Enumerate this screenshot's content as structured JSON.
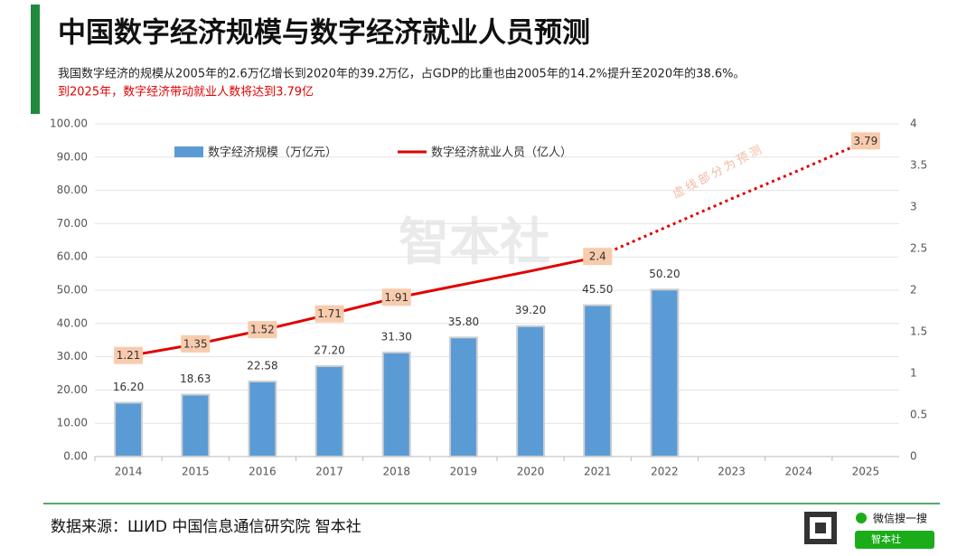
{
  "chart_data": {
    "type": "bar_line",
    "title": "中国数字经济规模与数字经济就业人员预测",
    "subtitle": "我国数字经济的规模从2005年的2.6万亿增长到2020年的39.2万亿，占GDP的比重也由2005年的14.2%提升至2020年的38.6%。",
    "highlight": "到2025年，数字经济带动就业人数将达到3.79亿",
    "annotation": "虚线部分为预测",
    "watermark": "智本社",
    "source": "数据来源：ШИD  中国信息通信研究院   智本社",
    "wechat": "微信搜一搜",
    "wechat_button": "智本社",
    "categories": [
      "2014",
      "2015",
      "2016",
      "2017",
      "2018",
      "2019",
      "2020",
      "2021",
      "2022",
      "2023",
      "2024",
      "2025"
    ],
    "series": [
      {
        "name": "数字经济规模（万亿元）",
        "color": "#5b9bd5",
        "type": "bar",
        "values": [
          16.2,
          18.63,
          22.58,
          27.2,
          31.3,
          35.8,
          39.2,
          45.5,
          50.2,
          null,
          null,
          null
        ],
        "value_labels": [
          "16.20",
          "18.63",
          "22.58",
          "27.20",
          "31.30",
          "35.80",
          "39.20",
          "45.50",
          "50.20",
          null,
          null,
          null
        ]
      },
      {
        "name": "数字经济就业人员（亿人）",
        "color": "#e00000",
        "type": "line",
        "axis": "y2",
        "values": [
          1.21,
          1.35,
          1.52,
          1.71,
          1.91,
          2.07,
          2.23,
          2.4,
          2.75,
          3.1,
          3.44,
          3.79
        ],
        "value_labels": [
          "1.21",
          "1.35",
          "1.52",
          "1.71",
          "1.91",
          null,
          null,
          "2.4",
          null,
          null,
          null,
          "3.79"
        ],
        "forecast_start": 2021
      }
    ],
    "ylim": [
      0,
      100
    ],
    "yticks": [
      {
        "value": 0,
        "label": "0.00"
      },
      {
        "value": 10,
        "label": "10.00"
      },
      {
        "value": 20,
        "label": "20.00"
      },
      {
        "value": 30,
        "label": "30.00"
      },
      {
        "value": 40,
        "label": "40.00"
      },
      {
        "value": 50,
        "label": "50.00"
      },
      {
        "value": 60,
        "label": "60.00"
      },
      {
        "value": 70,
        "label": "70.00"
      },
      {
        "value": 80,
        "label": "80.00"
      },
      {
        "value": 90,
        "label": "90.00"
      },
      {
        "value": 100,
        "label": "100.00"
      }
    ],
    "y2lim": [
      0,
      4
    ],
    "y2ticks": [
      0,
      0.5,
      1,
      1.5,
      2,
      2.5,
      3,
      3.5,
      4
    ],
    "grid": true
  }
}
